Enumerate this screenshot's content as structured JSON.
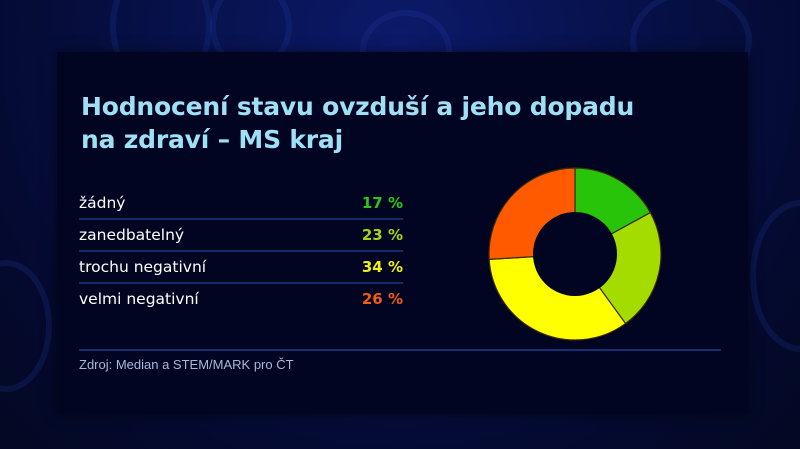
{
  "title_line1": "Hodnocení stavu ovzduší a jeho dopadu",
  "title_line2": "na zdraví – MS kraj",
  "legend": [
    {
      "label": "žádný",
      "value": "17 %",
      "color": "#2ec614"
    },
    {
      "label": "zanedbatelný",
      "value": "23 %",
      "color": "#a3d416"
    },
    {
      "label": "trochu negativní",
      "value": "34 %",
      "color": "#f0f016"
    },
    {
      "label": "velmi negativní",
      "value": "26 %",
      "color": "#f05a14"
    }
  ],
  "source": "Zdroj: Median a STEM/MARK pro ČT",
  "chart_data": {
    "type": "pie",
    "variant": "donut",
    "title": "Hodnocení stavu ovzduší a jeho dopadu na zdraví – MS kraj",
    "categories": [
      "žádný",
      "zanedbatelný",
      "trochu negativní",
      "velmi negativní"
    ],
    "values": [
      17,
      23,
      34,
      26
    ],
    "unit": "%",
    "colors": [
      "#27c40a",
      "#a4dc00",
      "#ffff00",
      "#ff5a00"
    ],
    "start_angle": "12 o'clock, clockwise",
    "legend_position": "left",
    "source": "Zdroj: Median a STEM/MARK pro ČT"
  }
}
